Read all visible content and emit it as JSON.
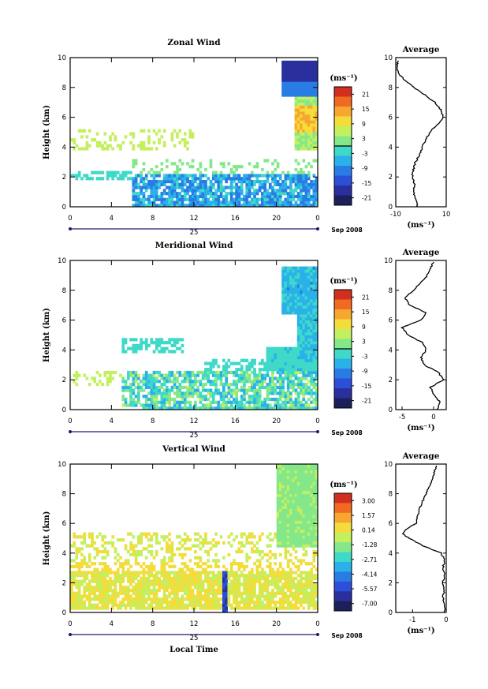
{
  "chart_data": [
    {
      "type": "heatmap",
      "title": "Zonal Wind",
      "ylabel": "Height (km)",
      "xlabel": "",
      "xticks": [
        "0",
        "4",
        "8",
        "12",
        "16",
        "20",
        "0"
      ],
      "yticks": [
        "0",
        "2",
        "4",
        "6",
        "8",
        "10"
      ],
      "xlim": [
        0,
        24
      ],
      "ylim": [
        0,
        10
      ],
      "date_label": "25",
      "month_label": "Sep 2008",
      "colorbar": {
        "unit": "(ms⁻¹)",
        "ticks": [
          "21",
          "15",
          "9",
          "3",
          "-3",
          "-9",
          "-15",
          "-21"
        ],
        "zero_line": true,
        "colors": [
          "#d22f1f",
          "#f06a21",
          "#f7a72f",
          "#f4dc3b",
          "#c4ef5f",
          "#84e88a",
          "#3fd9c8",
          "#2ab1ea",
          "#2a7ce5",
          "#2b4fd8",
          "#2a2f9e",
          "#1b1f5a"
        ]
      },
      "grid": false,
      "average": {
        "title": "Average",
        "xlabel": "(ms⁻¹)",
        "xticks": [
          "-10",
          "10"
        ],
        "xlim": [
          -10,
          10
        ],
        "yticks": [
          "0",
          "2",
          "4",
          "6",
          "8",
          "10"
        ],
        "ylim": [
          0,
          10
        ],
        "profile": [
          [
            0.0,
            -1.5
          ],
          [
            0.5,
            -2.0
          ],
          [
            1.0,
            -3.0
          ],
          [
            1.5,
            -2.5
          ],
          [
            2.0,
            -3.5
          ],
          [
            2.5,
            -3.0
          ],
          [
            3.0,
            -2.2
          ],
          [
            3.5,
            -0.5
          ],
          [
            4.0,
            0.5
          ],
          [
            4.5,
            1.8
          ],
          [
            5.0,
            3.5
          ],
          [
            5.5,
            6.5
          ],
          [
            6.0,
            8.8
          ],
          [
            6.5,
            7.8
          ],
          [
            7.0,
            5.5
          ],
          [
            7.5,
            1.5
          ],
          [
            8.0,
            -2.8
          ],
          [
            8.5,
            -6.5
          ],
          [
            9.0,
            -9.2
          ],
          [
            9.5,
            -9.5
          ],
          [
            9.8,
            -9.0
          ]
        ]
      }
    },
    {
      "type": "heatmap",
      "title": "Meridional Wind",
      "ylabel": "Height (km)",
      "xlabel": "",
      "xticks": [
        "0",
        "4",
        "8",
        "12",
        "16",
        "20",
        "0"
      ],
      "yticks": [
        "0",
        "2",
        "4",
        "6",
        "8",
        "10"
      ],
      "xlim": [
        0,
        24
      ],
      "ylim": [
        0,
        10
      ],
      "date_label": "25",
      "month_label": "Sep 2008",
      "colorbar": {
        "unit": "(ms⁻¹)",
        "ticks": [
          "21",
          "15",
          "9",
          "3",
          "-3",
          "-9",
          "-15",
          "-21"
        ],
        "zero_line": true,
        "colors": [
          "#d22f1f",
          "#f06a21",
          "#f7a72f",
          "#f4dc3b",
          "#c4ef5f",
          "#84e88a",
          "#3fd9c8",
          "#2ab1ea",
          "#2a7ce5",
          "#2b4fd8",
          "#2a2f9e",
          "#1b1f5a"
        ]
      },
      "grid": false,
      "average": {
        "title": "Average",
        "xlabel": "(ms⁻¹)",
        "xticks": [
          "-5",
          "0"
        ],
        "xlim": [
          -6,
          2
        ],
        "yticks": [
          "0",
          "2",
          "4",
          "6",
          "8",
          "10"
        ],
        "ylim": [
          0,
          10
        ],
        "profile": [
          [
            0.0,
            0.5
          ],
          [
            0.5,
            1.0
          ],
          [
            1.0,
            0.0
          ],
          [
            1.5,
            -0.5
          ],
          [
            2.0,
            1.5
          ],
          [
            2.5,
            0.8
          ],
          [
            3.0,
            -1.5
          ],
          [
            3.5,
            -2.0
          ],
          [
            4.0,
            -1.2
          ],
          [
            4.5,
            -1.8
          ],
          [
            5.0,
            -4.0
          ],
          [
            5.5,
            -5.0
          ],
          [
            6.0,
            -2.0
          ],
          [
            6.5,
            -1.2
          ],
          [
            7.0,
            -3.8
          ],
          [
            7.5,
            -4.5
          ],
          [
            8.0,
            -3.2
          ],
          [
            8.5,
            -2.0
          ],
          [
            9.0,
            -1.0
          ],
          [
            9.5,
            -0.5
          ],
          [
            9.9,
            0.0
          ]
        ]
      }
    },
    {
      "type": "heatmap",
      "title": "Vertical Wind",
      "ylabel": "Height (km)",
      "xlabel": "Local Time",
      "xticks": [
        "0",
        "4",
        "8",
        "12",
        "16",
        "20",
        "0"
      ],
      "yticks": [
        "0",
        "2",
        "4",
        "6",
        "8",
        "10"
      ],
      "xlim": [
        0,
        24
      ],
      "ylim": [
        0,
        10
      ],
      "date_label": "25",
      "month_label": "Sep 2008",
      "colorbar": {
        "unit": "(ms⁻¹)",
        "ticks": [
          "3.00",
          "1.57",
          "0.14",
          "-1.28",
          "-2.71",
          "-4.14",
          "-5.57",
          "-7.00"
        ],
        "zero_line": false,
        "colors": [
          "#d22f1f",
          "#f06a21",
          "#f7a72f",
          "#f4dc3b",
          "#c4ef5f",
          "#84e88a",
          "#3fd9c8",
          "#2ab1ea",
          "#2a7ce5",
          "#2b4fd8",
          "#2a2f9e",
          "#1b1f5a"
        ]
      },
      "grid": false,
      "average": {
        "title": "Average",
        "xlabel": "(ms⁻¹)",
        "xticks": [
          "-1",
          "0"
        ],
        "xlim": [
          -1.5,
          0
        ],
        "yticks": [
          "0",
          "2",
          "4",
          "6",
          "8",
          "10"
        ],
        "ylim": [
          0,
          10
        ],
        "profile": [
          [
            0.0,
            -0.05
          ],
          [
            0.5,
            -0.05
          ],
          [
            1.0,
            -0.1
          ],
          [
            1.5,
            -0.05
          ],
          [
            2.0,
            -0.1
          ],
          [
            2.5,
            -0.05
          ],
          [
            3.0,
            -0.1
          ],
          [
            3.5,
            -0.05
          ],
          [
            4.0,
            -0.15
          ],
          [
            4.5,
            -0.7
          ],
          [
            5.0,
            -1.1
          ],
          [
            5.3,
            -1.3
          ],
          [
            5.6,
            -1.2
          ],
          [
            6.0,
            -0.9
          ],
          [
            6.5,
            -0.85
          ],
          [
            7.0,
            -0.8
          ],
          [
            7.5,
            -0.7
          ],
          [
            8.0,
            -0.6
          ],
          [
            8.5,
            -0.5
          ],
          [
            9.0,
            -0.4
          ],
          [
            9.5,
            -0.35
          ],
          [
            9.9,
            -0.3
          ]
        ]
      }
    }
  ]
}
